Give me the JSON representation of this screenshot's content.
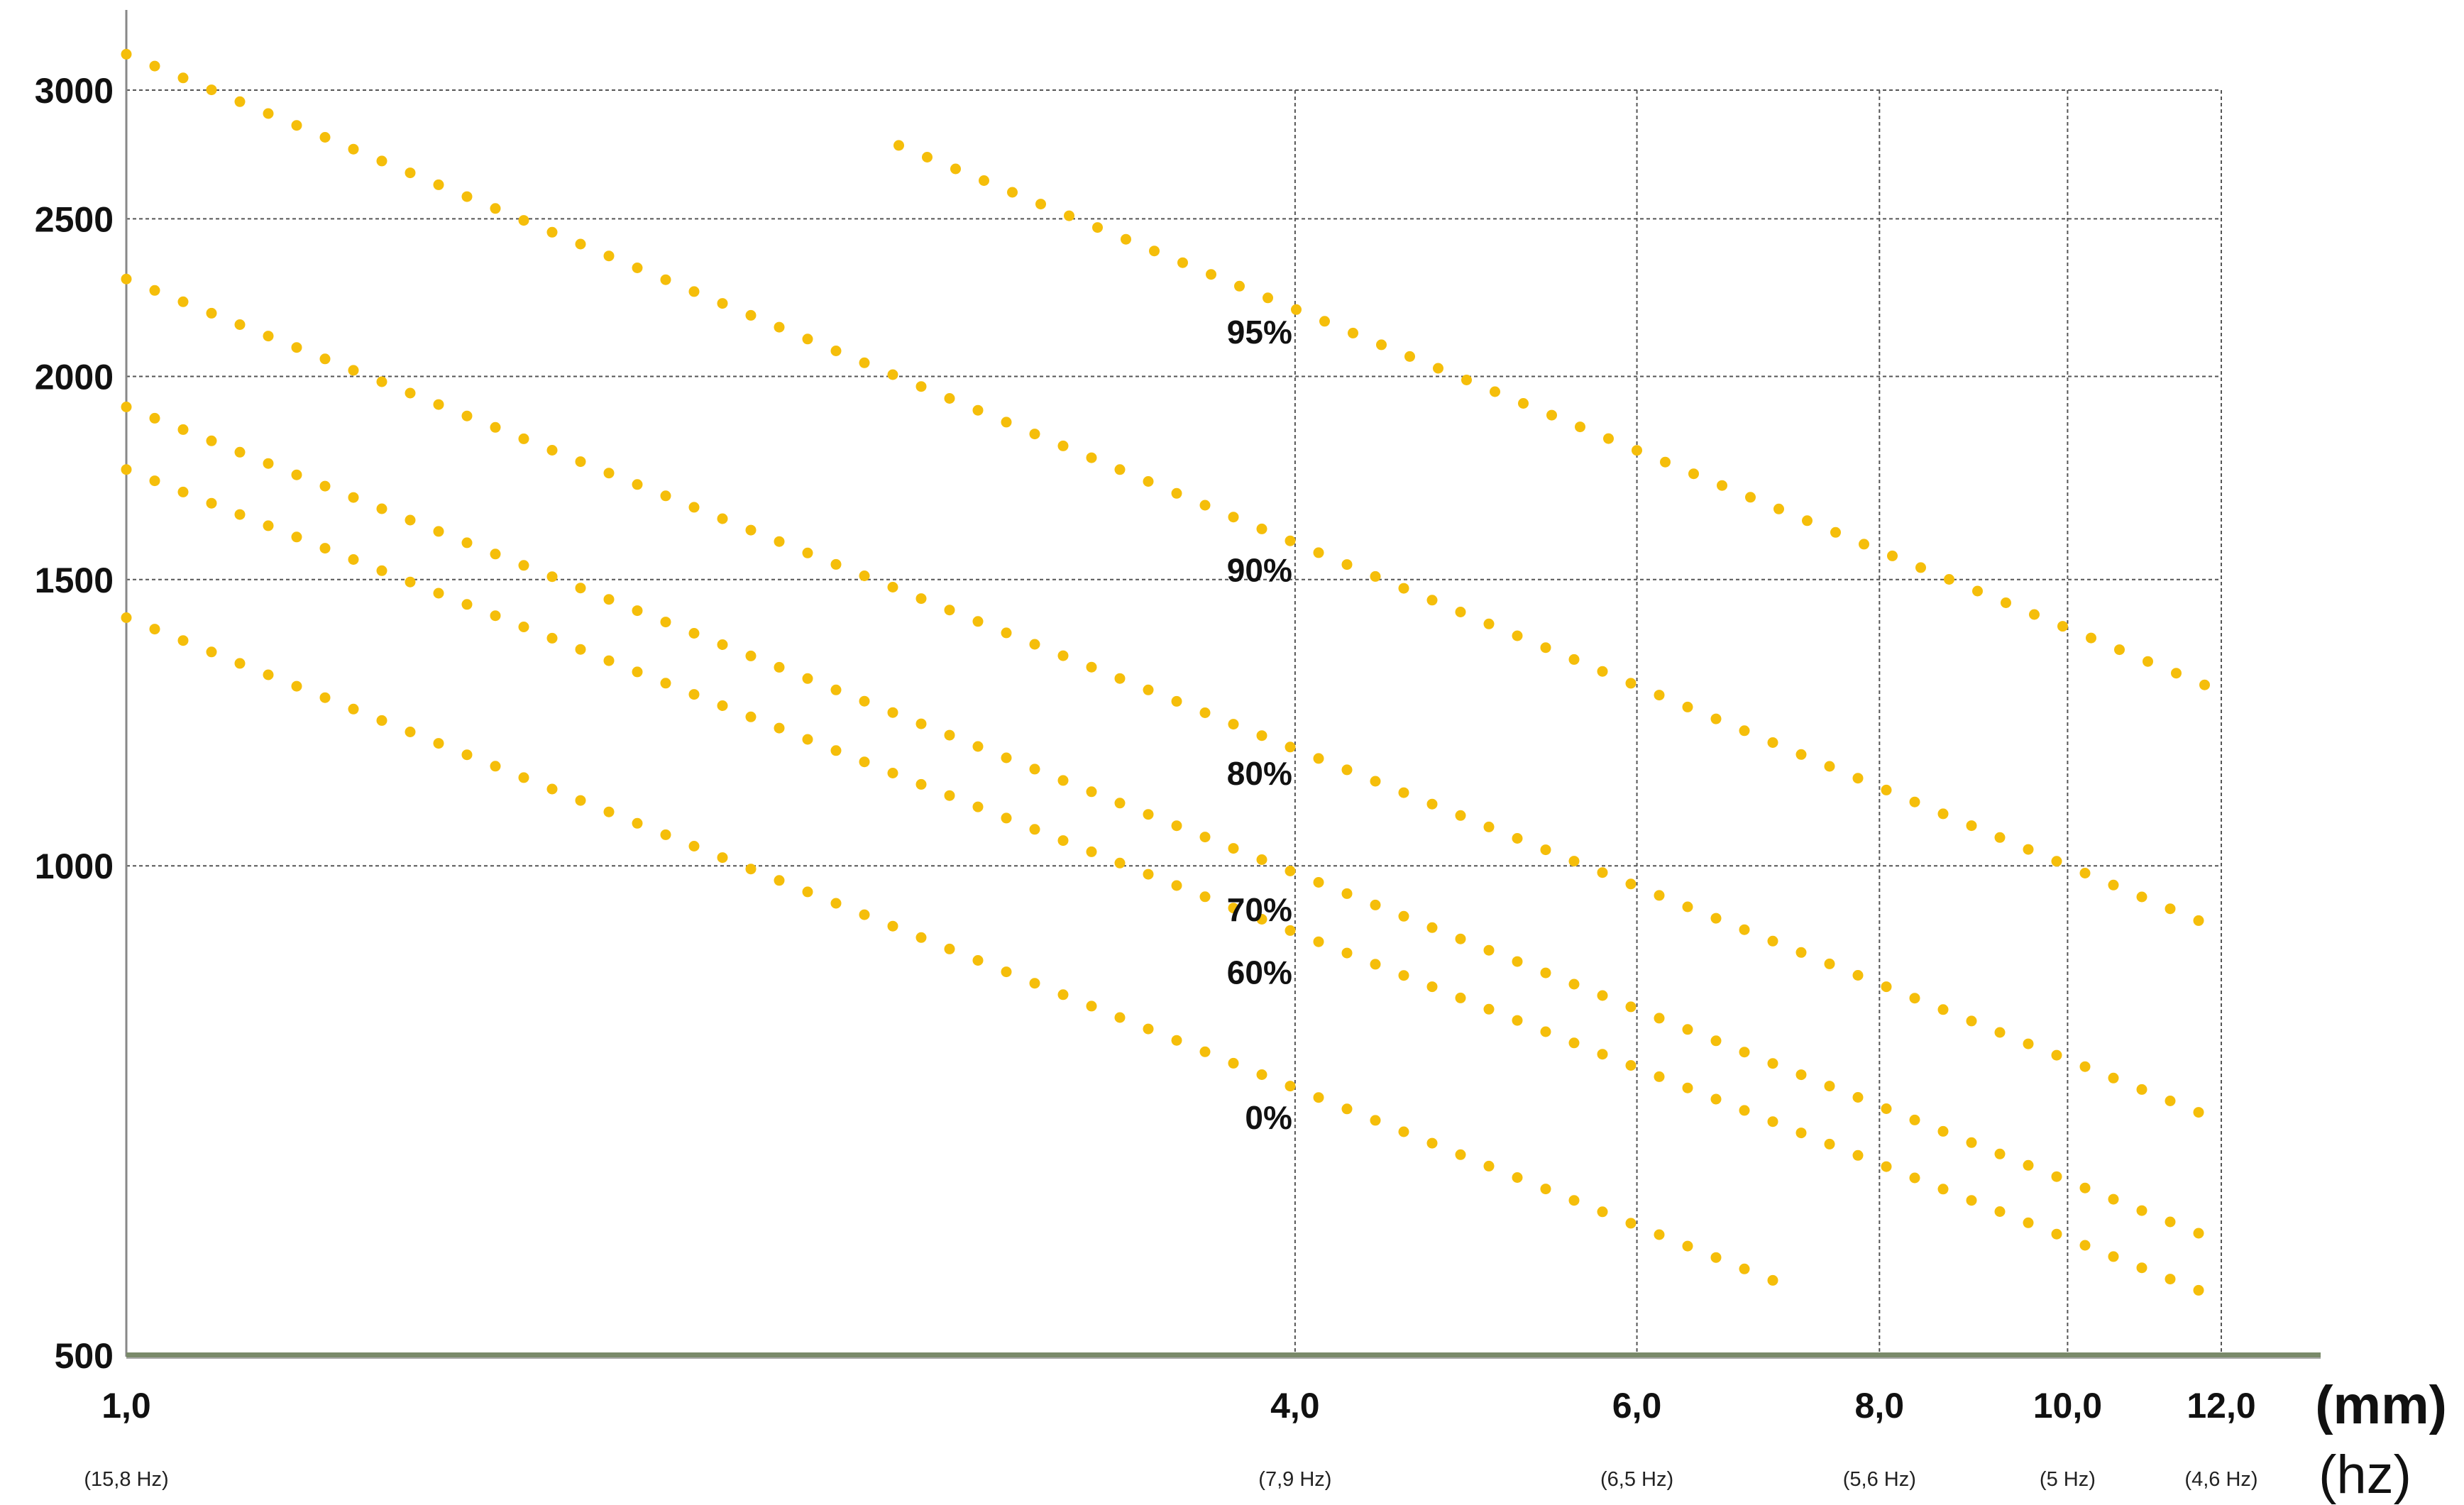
{
  "chart_data": {
    "type": "scatter",
    "x_scale": "log",
    "y_scale": "log",
    "xlim": [
      1.0,
      12.0
    ],
    "ylim": [
      500,
      3000
    ],
    "x_ticks": [
      {
        "value": 1.0,
        "label": "1,0",
        "sublabel": "(15,8 Hz)"
      },
      {
        "value": 4.0,
        "label": "4,0",
        "sublabel": "(7,9 Hz)"
      },
      {
        "value": 6.0,
        "label": "6,0",
        "sublabel": "(6,5 Hz)"
      },
      {
        "value": 8.0,
        "label": "8,0",
        "sublabel": "(5,6 Hz)"
      },
      {
        "value": 10.0,
        "label": "10,0",
        "sublabel": "(5 Hz)"
      },
      {
        "value": 12.0,
        "label": "12,0",
        "sublabel": "(4,6 Hz)"
      }
    ],
    "y_ticks": [
      {
        "value": 500,
        "label": "500"
      },
      {
        "value": 1000,
        "label": "1000"
      },
      {
        "value": 1500,
        "label": "1500"
      },
      {
        "value": 2000,
        "label": "2000"
      },
      {
        "value": 2500,
        "label": "2500"
      },
      {
        "value": 3000,
        "label": "3000"
      }
    ],
    "x_unit": "(mm)",
    "x_unit2": "(hz)",
    "grid": true,
    "series": [
      {
        "name": "95%",
        "x_start": 2.5,
        "x_end": 12.0,
        "y_at_4": 2200,
        "y_at_10": 1400,
        "label_x": 4.0,
        "label_y": 2130
      },
      {
        "name": "90%",
        "x_start": 1.0,
        "x_end": 12.0,
        "y_at_4": 1580,
        "y_at_10": 1000,
        "label_x": 4.0,
        "label_y": 1520
      },
      {
        "name": "80%",
        "x_start": 1.0,
        "x_end": 12.0,
        "y_at_4": 1180,
        "y_at_10": 760,
        "label_x": 4.0,
        "label_y": 1140
      },
      {
        "name": "70%",
        "x_start": 1.0,
        "x_end": 12.0,
        "y_at_4": 990,
        "y_at_10": 640,
        "label_x": 4.0,
        "label_y": 940
      },
      {
        "name": "60%",
        "x_start": 1.0,
        "x_end": 12.0,
        "y_at_4": 910,
        "y_at_10": 590,
        "label_x": 4.0,
        "label_y": 860
      },
      {
        "name": "0%",
        "x_start": 1.0,
        "x_end": 7.2,
        "y_at_4": 730,
        "y_at_10": 470,
        "label_x": 4.0,
        "label_y": 700
      }
    ],
    "series_color": "#F5BE0A",
    "grid_color": "#555555",
    "baseline_color": "#7A8A6A"
  }
}
